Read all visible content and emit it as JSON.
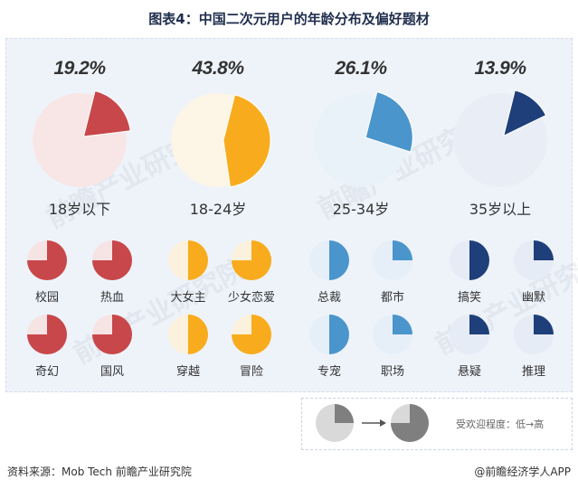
{
  "title": "图表4：中国二次元用户的年龄分布及偏好题材",
  "source": "资料来源：Mob Tech 前瞻产业研究院",
  "credit": "@前瞻经济学人APP",
  "watermark": "前瞻产业研究院",
  "legend": {
    "label": "受欢迎程度：低→高",
    "before_fraction": 0.25,
    "after_fraction": 0.75
  },
  "colors": {
    "red": "#c8474a",
    "orange": "#f8ac1d",
    "lightblue": "#4a95cc",
    "navy": "#1f3f7a",
    "gray": "#7f7f7f"
  },
  "chart_data": [
    {
      "type": "pie",
      "title": "",
      "groups": [
        {
          "label": "18岁以下",
          "pct_label": "19.2%",
          "value": 19.2
        },
        {
          "label": "18-24岁",
          "pct_label": "43.8%",
          "value": 43.8
        },
        {
          "label": "25-34岁",
          "pct_label": "26.1%",
          "value": 26.1
        },
        {
          "label": "35岁以上",
          "pct_label": "13.9%",
          "value": 13.9
        }
      ]
    },
    {
      "type": "pie",
      "title": "",
      "note": "Genre popularity per age group, shown as filled fraction of a circle",
      "genres": [
        {
          "group": "18岁以下",
          "name": "校园",
          "fraction": 0.75
        },
        {
          "group": "18岁以下",
          "name": "热血",
          "fraction": 0.75
        },
        {
          "group": "18岁以下",
          "name": "奇幻",
          "fraction": 0.75
        },
        {
          "group": "18岁以下",
          "name": "国风",
          "fraction": 0.75
        },
        {
          "group": "18-24岁",
          "name": "大女主",
          "fraction": 0.5
        },
        {
          "group": "18-24岁",
          "name": "少女恋爱",
          "fraction": 0.75
        },
        {
          "group": "18-24岁",
          "name": "穿越",
          "fraction": 0.5
        },
        {
          "group": "18-24岁",
          "name": "冒险",
          "fraction": 0.75
        },
        {
          "group": "25-34岁",
          "name": "总裁",
          "fraction": 0.5
        },
        {
          "group": "25-34岁",
          "name": "都市",
          "fraction": 0.25
        },
        {
          "group": "25-34岁",
          "name": "专宠",
          "fraction": 0.5
        },
        {
          "group": "25-34岁",
          "name": "职场",
          "fraction": 0.25
        },
        {
          "group": "35岁以上",
          "name": "搞笑",
          "fraction": 0.5
        },
        {
          "group": "35岁以上",
          "name": "幽默",
          "fraction": 0.25
        },
        {
          "group": "35岁以上",
          "name": "悬疑",
          "fraction": 0.25
        },
        {
          "group": "35岁以上",
          "name": "推理",
          "fraction": 0.25
        }
      ]
    }
  ]
}
